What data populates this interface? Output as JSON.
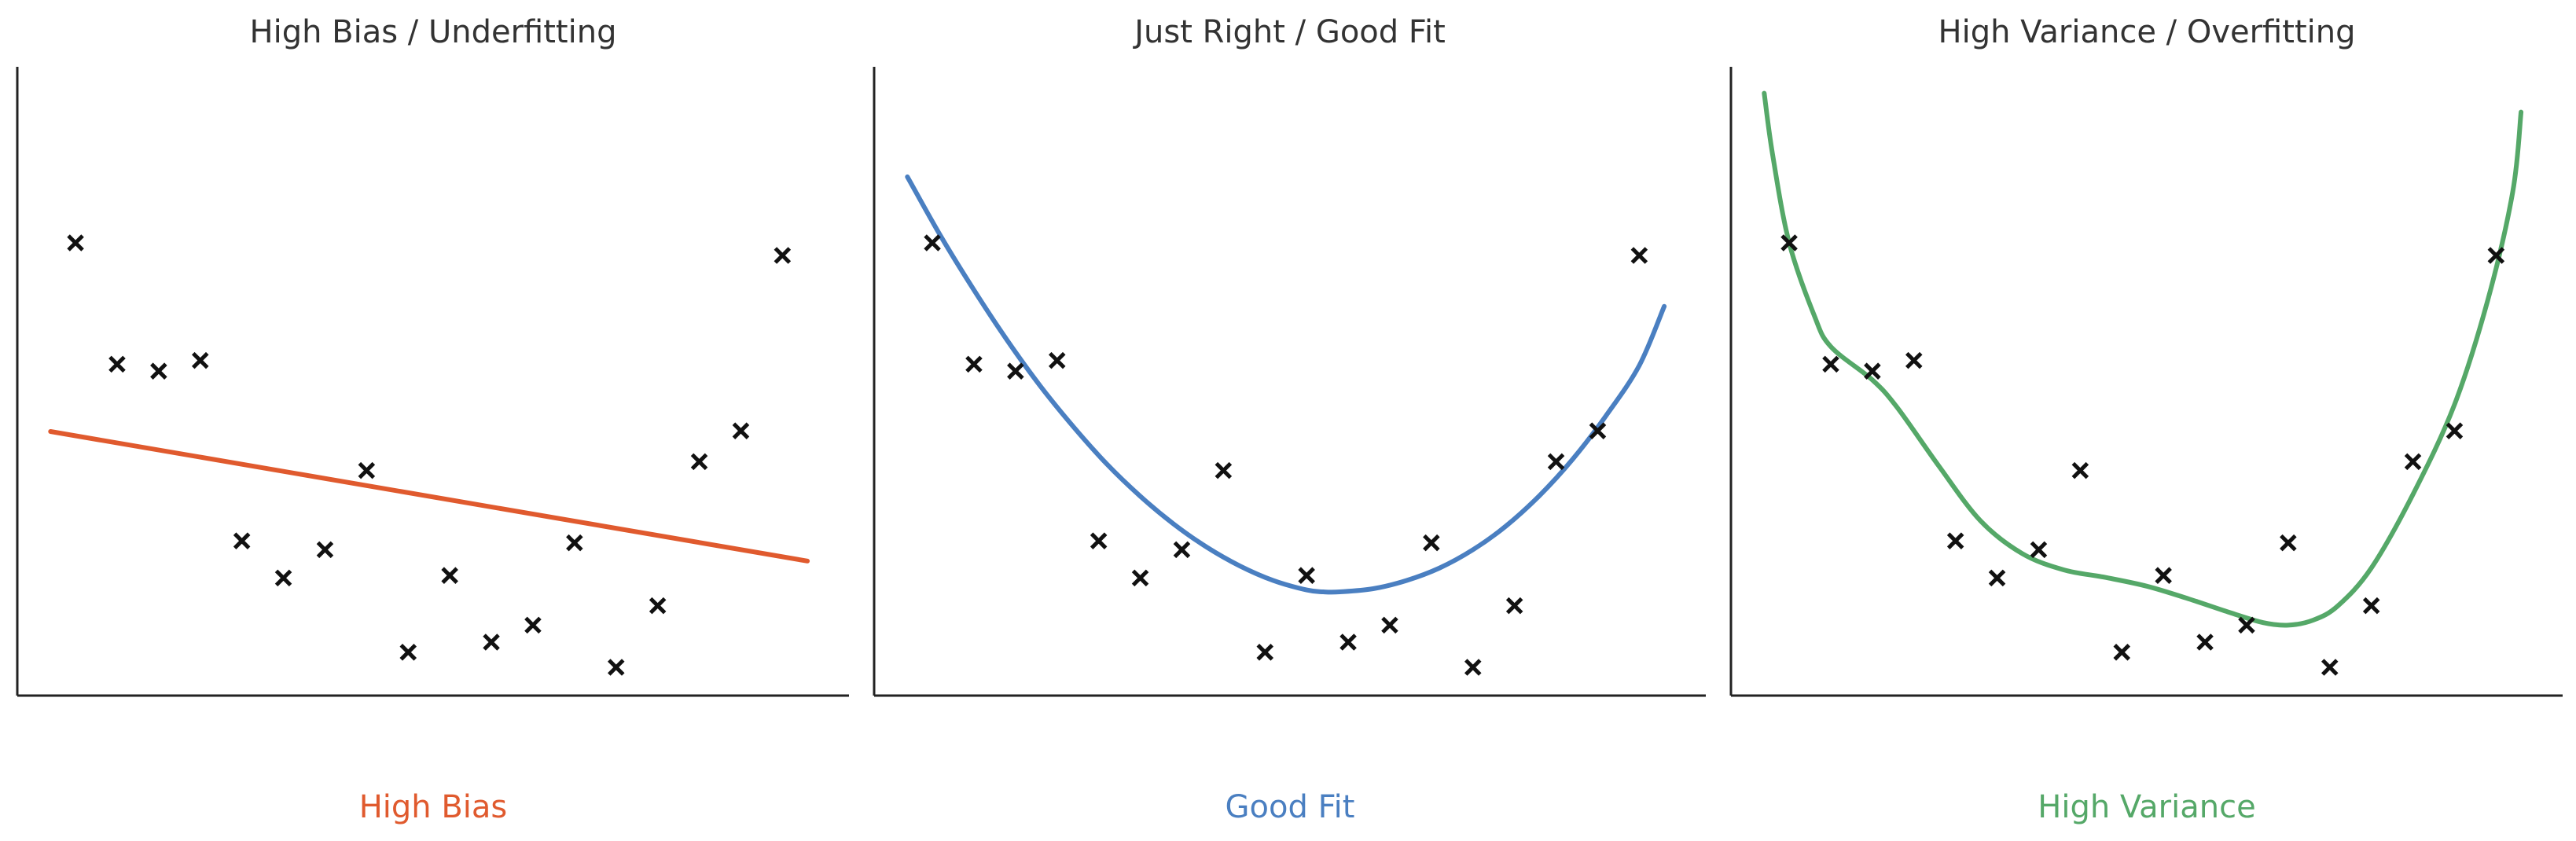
{
  "chart_data": [
    {
      "type": "scatter",
      "title": "High Bias / Underfitting",
      "caption": "High Bias",
      "color": "#e05a2e",
      "xlim": [
        0,
        1
      ],
      "ylim": [
        0,
        1
      ],
      "grid": false,
      "points": [
        [
          0.07,
          0.72
        ],
        [
          0.12,
          0.527
        ],
        [
          0.17,
          0.516
        ],
        [
          0.22,
          0.533
        ],
        [
          0.27,
          0.246
        ],
        [
          0.32,
          0.187
        ],
        [
          0.37,
          0.232
        ],
        [
          0.42,
          0.358
        ],
        [
          0.47,
          0.069
        ],
        [
          0.52,
          0.191
        ],
        [
          0.57,
          0.085
        ],
        [
          0.62,
          0.112
        ],
        [
          0.67,
          0.243
        ],
        [
          0.72,
          0.045
        ],
        [
          0.77,
          0.143
        ],
        [
          0.82,
          0.372
        ],
        [
          0.87,
          0.421
        ],
        [
          0.92,
          0.7
        ]
      ],
      "fit": {
        "kind": "linear",
        "from": [
          0.04,
          0.42
        ],
        "to": [
          0.95,
          0.214
        ]
      }
    },
    {
      "type": "scatter",
      "title": "Just Right / Good Fit",
      "caption": "Good Fit",
      "color": "#4a7fc1",
      "xlim": [
        0,
        1
      ],
      "ylim": [
        0,
        1
      ],
      "grid": false,
      "points": [
        [
          0.07,
          0.72
        ],
        [
          0.12,
          0.527
        ],
        [
          0.17,
          0.516
        ],
        [
          0.22,
          0.533
        ],
        [
          0.27,
          0.246
        ],
        [
          0.32,
          0.187
        ],
        [
          0.37,
          0.232
        ],
        [
          0.42,
          0.358
        ],
        [
          0.47,
          0.069
        ],
        [
          0.52,
          0.191
        ],
        [
          0.57,
          0.085
        ],
        [
          0.62,
          0.112
        ],
        [
          0.67,
          0.243
        ],
        [
          0.72,
          0.045
        ],
        [
          0.77,
          0.143
        ],
        [
          0.82,
          0.372
        ],
        [
          0.87,
          0.421
        ],
        [
          0.92,
          0.7
        ]
      ],
      "fit": {
        "kind": "curve",
        "points": [
          [
            0.04,
            0.825
          ],
          [
            0.08,
            0.731
          ],
          [
            0.12,
            0.645
          ],
          [
            0.16,
            0.565
          ],
          [
            0.2,
            0.492
          ],
          [
            0.24,
            0.427
          ],
          [
            0.28,
            0.368
          ],
          [
            0.32,
            0.317
          ],
          [
            0.36,
            0.273
          ],
          [
            0.4,
            0.236
          ],
          [
            0.44,
            0.206
          ],
          [
            0.48,
            0.183
          ],
          [
            0.52,
            0.168
          ],
          [
            0.54,
            0.165
          ],
          [
            0.56,
            0.165
          ],
          [
            0.6,
            0.17
          ],
          [
            0.64,
            0.183
          ],
          [
            0.68,
            0.203
          ],
          [
            0.72,
            0.232
          ],
          [
            0.76,
            0.27
          ],
          [
            0.8,
            0.318
          ],
          [
            0.84,
            0.376
          ],
          [
            0.88,
            0.445
          ],
          [
            0.92,
            0.525
          ],
          [
            0.95,
            0.619
          ]
        ]
      }
    },
    {
      "type": "scatter",
      "title": "High Variance / Overfitting",
      "caption": "High Variance",
      "color": "#55a868",
      "xlim": [
        0,
        1
      ],
      "ylim": [
        0,
        1
      ],
      "grid": false,
      "points": [
        [
          0.07,
          0.72
        ],
        [
          0.12,
          0.527
        ],
        [
          0.17,
          0.516
        ],
        [
          0.22,
          0.533
        ],
        [
          0.27,
          0.246
        ],
        [
          0.32,
          0.187
        ],
        [
          0.37,
          0.232
        ],
        [
          0.42,
          0.358
        ],
        [
          0.47,
          0.069
        ],
        [
          0.52,
          0.191
        ],
        [
          0.57,
          0.085
        ],
        [
          0.62,
          0.112
        ],
        [
          0.67,
          0.243
        ],
        [
          0.72,
          0.045
        ],
        [
          0.77,
          0.143
        ],
        [
          0.82,
          0.372
        ],
        [
          0.87,
          0.421
        ],
        [
          0.92,
          0.7
        ]
      ],
      "fit": {
        "kind": "curve",
        "points": [
          [
            0.04,
            0.958
          ],
          [
            0.05,
            0.861
          ],
          [
            0.07,
            0.72
          ],
          [
            0.1,
            0.605
          ],
          [
            0.12,
            0.555
          ],
          [
            0.17,
            0.502
          ],
          [
            0.2,
            0.458
          ],
          [
            0.25,
            0.365
          ],
          [
            0.3,
            0.278
          ],
          [
            0.35,
            0.226
          ],
          [
            0.4,
            0.2
          ],
          [
            0.45,
            0.188
          ],
          [
            0.5,
            0.174
          ],
          [
            0.55,
            0.154
          ],
          [
            0.6,
            0.132
          ],
          [
            0.64,
            0.116
          ],
          [
            0.67,
            0.112
          ],
          [
            0.7,
            0.12
          ],
          [
            0.73,
            0.143
          ],
          [
            0.77,
            0.203
          ],
          [
            0.82,
            0.32
          ],
          [
            0.87,
            0.463
          ],
          [
            0.91,
            0.629
          ],
          [
            0.94,
            0.801
          ],
          [
            0.95,
            0.928
          ]
        ]
      }
    }
  ]
}
